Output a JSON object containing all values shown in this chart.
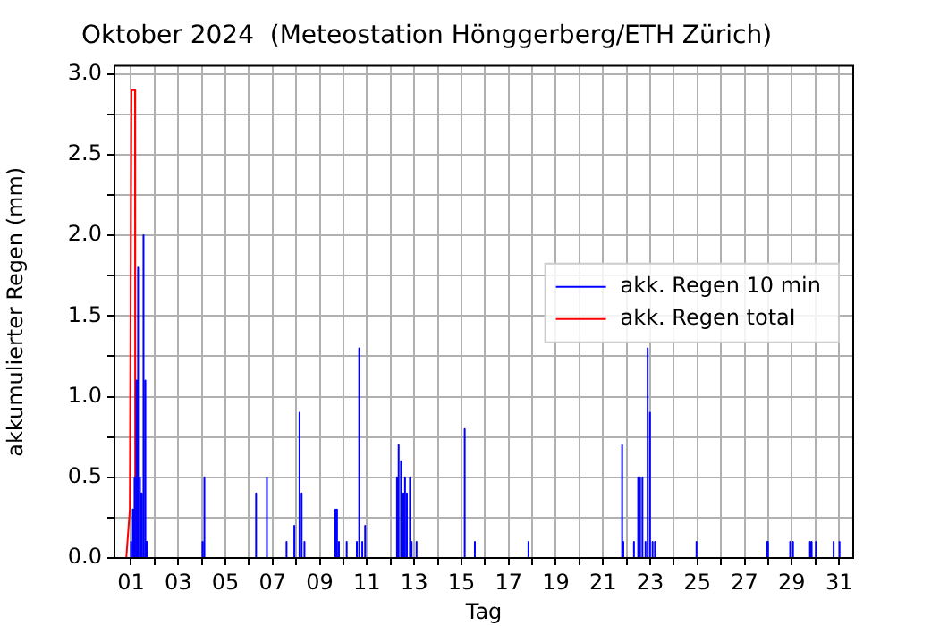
{
  "chart_data": {
    "type": "line",
    "title": "Oktober 2024  (Meteostation Hönggerberg/ETH Zürich)",
    "xlabel": "Tag",
    "ylabel": "akkumulierter Regen (mm)",
    "xlim": [
      0.3,
      31.6
    ],
    "xticks": [
      {
        "value": 1,
        "label": "01"
      },
      {
        "value": 2,
        "label": null
      },
      {
        "value": 3,
        "label": "03"
      },
      {
        "value": 4,
        "label": null
      },
      {
        "value": 5,
        "label": "05"
      },
      {
        "value": 6,
        "label": null
      },
      {
        "value": 7,
        "label": "07"
      },
      {
        "value": 8,
        "label": null
      },
      {
        "value": 9,
        "label": "09"
      },
      {
        "value": 10,
        "label": null
      },
      {
        "value": 11,
        "label": "11"
      },
      {
        "value": 12,
        "label": null
      },
      {
        "value": 13,
        "label": "13"
      },
      {
        "value": 14,
        "label": null
      },
      {
        "value": 15,
        "label": "15"
      },
      {
        "value": 16,
        "label": null
      },
      {
        "value": 17,
        "label": "17"
      },
      {
        "value": 18,
        "label": null
      },
      {
        "value": 19,
        "label": "19"
      },
      {
        "value": 20,
        "label": null
      },
      {
        "value": 21,
        "label": "21"
      },
      {
        "value": 22,
        "label": null
      },
      {
        "value": 23,
        "label": "23"
      },
      {
        "value": 24,
        "label": null
      },
      {
        "value": 25,
        "label": "25"
      },
      {
        "value": 26,
        "label": null
      },
      {
        "value": 27,
        "label": "27"
      },
      {
        "value": 28,
        "label": null
      },
      {
        "value": 29,
        "label": "29"
      },
      {
        "value": 30,
        "label": null
      },
      {
        "value": 31,
        "label": "31"
      }
    ],
    "ylim": [
      0,
      3.05
    ],
    "yticks": [
      {
        "value": 0,
        "label": "0.0"
      },
      {
        "value": 0.25,
        "label": null
      },
      {
        "value": 0.5,
        "label": "0.5"
      },
      {
        "value": 0.75,
        "label": null
      },
      {
        "value": 1,
        "label": "1.0"
      },
      {
        "value": 1.25,
        "label": null
      },
      {
        "value": 1.5,
        "label": "1.5"
      },
      {
        "value": 1.75,
        "label": null
      },
      {
        "value": 2,
        "label": "2.0"
      },
      {
        "value": 2.25,
        "label": null
      },
      {
        "value": 2.5,
        "label": "2.5"
      },
      {
        "value": 2.75,
        "label": null
      },
      {
        "value": 3,
        "label": "3.0"
      }
    ],
    "grid": true,
    "legend": "right",
    "series": [
      {
        "name": "akk. Regen 10 min",
        "color": "#0000ff",
        "x": [
          1.0,
          1.0,
          1.0,
          1.08,
          1.08,
          1.08,
          1.15,
          1.15,
          1.15,
          1.23,
          1.23,
          1.23,
          1.3,
          1.3,
          1.3,
          1.38,
          1.38,
          1.38,
          1.45,
          1.45,
          1.45,
          1.53,
          1.53,
          1.53,
          1.61,
          1.61,
          1.61,
          1.68,
          1.68,
          1.68,
          4.03,
          4.03,
          4.03,
          4.11,
          4.11,
          4.11,
          6.3,
          6.3,
          6.3,
          6.76,
          6.76,
          6.76,
          7.59,
          7.59,
          7.59,
          7.92,
          7.92,
          7.92,
          8.14,
          8.14,
          8.14,
          8.23,
          8.23,
          8.23,
          8.35,
          8.35,
          8.35,
          9.66,
          9.66,
          9.66,
          9.73,
          9.73,
          9.73,
          9.81,
          9.81,
          9.81,
          10.14,
          10.14,
          10.14,
          10.57,
          10.57,
          10.57,
          10.67,
          10.67,
          10.67,
          10.8,
          10.8,
          10.8,
          10.92,
          10.92,
          10.92,
          12.27,
          12.27,
          12.27,
          12.34,
          12.34,
          12.34,
          12.44,
          12.44,
          12.44,
          12.54,
          12.54,
          12.54,
          12.61,
          12.61,
          12.61,
          12.69,
          12.69,
          12.69,
          12.82,
          12.82,
          12.82,
          12.89,
          12.89,
          12.89,
          13.1,
          13.1,
          13.1,
          15.14,
          15.14,
          15.14,
          15.57,
          15.57,
          15.57,
          17.84,
          17.84,
          17.84,
          21.81,
          21.81,
          21.81,
          21.86,
          21.86,
          21.86,
          22.31,
          22.31,
          22.31,
          22.49,
          22.49,
          22.49,
          22.57,
          22.57,
          22.57,
          22.67,
          22.67,
          22.67,
          22.8,
          22.8,
          22.8,
          22.89,
          22.89,
          22.89,
          22.99,
          22.99,
          22.99,
          23.1,
          23.1,
          23.1,
          23.2,
          23.2,
          23.2,
          24.96,
          24.96,
          24.96,
          27.95,
          27.95,
          27.95,
          27.99,
          27.99,
          27.99,
          28.93,
          28.93,
          28.93,
          29.05,
          29.05,
          29.05,
          29.77,
          29.77,
          29.77,
          29.84,
          29.84,
          29.84,
          30.02,
          30.02,
          30.02,
          30.77,
          30.77,
          30.77,
          31.02,
          31.02,
          31.02
        ],
        "values": [
          0,
          0.1,
          0,
          0,
          0.3,
          0,
          0,
          0.5,
          0,
          0,
          1.1,
          0,
          0,
          1.8,
          0,
          0,
          0.5,
          0,
          0,
          0.4,
          0,
          0,
          2.0,
          0,
          0,
          1.1,
          0,
          0,
          0.1,
          0,
          0,
          0.1,
          0,
          0,
          0.5,
          0,
          0,
          0.4,
          0,
          0,
          0.5,
          0,
          0,
          0.1,
          0,
          0,
          0.2,
          0,
          0,
          0.9,
          0,
          0,
          0.4,
          0,
          0,
          0.1,
          0,
          0,
          0.3,
          0,
          0,
          0.3,
          0,
          0,
          0.1,
          0,
          0,
          0.1,
          0,
          0,
          0.1,
          0,
          0,
          1.3,
          0,
          0,
          0.1,
          0,
          0,
          0.2,
          0,
          0,
          0.5,
          0,
          0,
          0.7,
          0,
          0,
          0.6,
          0,
          0,
          0.4,
          0,
          0,
          0.5,
          0,
          0,
          0.4,
          0,
          0,
          0.5,
          0,
          0,
          0.1,
          0,
          0,
          0.1,
          0,
          0,
          0.8,
          0,
          0,
          0.1,
          0,
          0,
          0.1,
          0,
          0,
          0.7,
          0,
          0,
          0.1,
          0,
          0,
          0.1,
          0,
          0,
          0.5,
          0,
          0,
          0.5,
          0,
          0,
          0.5,
          0,
          0,
          0.1,
          0,
          0,
          1.3,
          0,
          0,
          0.9,
          0,
          0,
          0.1,
          0,
          0,
          0.1,
          0,
          0,
          0.1,
          0,
          0,
          0.1,
          0,
          0,
          0.1,
          0,
          0,
          0.1,
          0,
          0,
          0.1,
          0,
          0,
          0.1,
          0,
          0,
          0.1,
          0,
          0,
          0.1,
          0,
          0,
          0.1,
          0,
          0,
          0.1,
          0
        ]
      },
      {
        "name": "akk. Regen total",
        "color": "#ff0000",
        "x": [
          0.8,
          0.95,
          1.02,
          1.17,
          1.18
        ],
        "values": [
          0,
          0.3,
          2.9,
          2.9,
          0
        ]
      }
    ]
  }
}
